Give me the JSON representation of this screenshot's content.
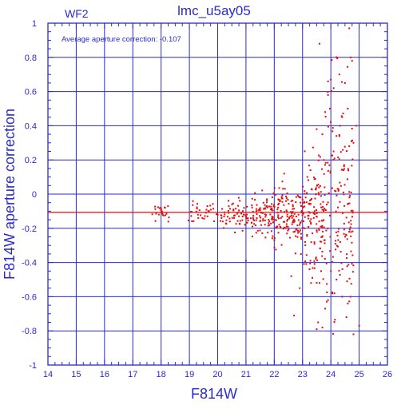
{
  "chart_data": {
    "type": "scatter",
    "title": "lmc_u5ay05",
    "subtitle": "WF2",
    "annotation": "Average aperture correction: -0.107",
    "xlabel": "F814W",
    "ylabel": "F814W aperture correction",
    "xlim": [
      14,
      26
    ],
    "ylim": [
      -1,
      1
    ],
    "x_ticks": [
      "14",
      "15",
      "16",
      "17",
      "18",
      "19",
      "20",
      "21",
      "22",
      "23",
      "24",
      "25",
      "26"
    ],
    "y_ticks": [
      "-1",
      "-0.8",
      "-0.6",
      "-0.4",
      "-0.2",
      "0",
      "0.2",
      "0.4",
      "0.6",
      "0.8",
      "1"
    ],
    "x_tick_values": [
      14,
      15,
      16,
      17,
      18,
      19,
      20,
      21,
      22,
      23,
      24,
      25,
      26
    ],
    "y_tick_values": [
      -1,
      -0.8,
      -0.6,
      -0.4,
      -0.2,
      0,
      0.2,
      0.4,
      0.6,
      0.8,
      1
    ],
    "grid": true,
    "reference_line_y": -0.107,
    "colors": {
      "axes": "#2a2ad0",
      "points": "#e01010",
      "reference_line": "#e01010",
      "background": "#ffffff"
    },
    "point_groups": [
      {
        "x_range": [
          17.6,
          18.4
        ],
        "y_center": -0.11,
        "y_spread": 0.03,
        "count": 22
      },
      {
        "x_range": [
          18.9,
          19.6
        ],
        "y_center": -0.11,
        "y_spread": 0.03,
        "count": 20
      },
      {
        "x_range": [
          19.6,
          20.4
        ],
        "y_center": -0.12,
        "y_spread": 0.035,
        "count": 30
      },
      {
        "x_range": [
          20.4,
          21.2
        ],
        "y_center": -0.12,
        "y_spread": 0.045,
        "count": 45
      },
      {
        "x_range": [
          21.2,
          22.0
        ],
        "y_center": -0.12,
        "y_spread": 0.06,
        "count": 90
      },
      {
        "x_range": [
          22.0,
          23.0
        ],
        "y_center": -0.12,
        "y_spread": 0.09,
        "count": 130
      },
      {
        "x_range": [
          23.0,
          23.8
        ],
        "y_center": -0.13,
        "y_spread": 0.18,
        "count": 140
      },
      {
        "x_range": [
          23.8,
          24.8
        ],
        "y_center": -0.08,
        "y_spread": 0.35,
        "count": 150
      }
    ],
    "outliers": [
      {
        "x": 24.65,
        "y": 0.97
      },
      {
        "x": 24.7,
        "y": 0.8
      },
      {
        "x": 24.75,
        "y": 0.78
      },
      {
        "x": 23.6,
        "y": 0.88
      },
      {
        "x": 24.3,
        "y": 0.7
      },
      {
        "x": 24.5,
        "y": 0.65
      },
      {
        "x": 24.1,
        "y": 0.62
      },
      {
        "x": 23.9,
        "y": 0.58
      },
      {
        "x": 24.6,
        "y": 0.5
      },
      {
        "x": 23.8,
        "y": 0.48
      },
      {
        "x": 24.4,
        "y": 0.45
      },
      {
        "x": 24.9,
        "y": 0.4
      },
      {
        "x": 23.5,
        "y": 0.38
      },
      {
        "x": 23.7,
        "y": 0.35
      },
      {
        "x": 24.2,
        "y": 0.34
      },
      {
        "x": 24.8,
        "y": 0.3
      },
      {
        "x": 21.0,
        "y": -0.39
      },
      {
        "x": 22.6,
        "y": -0.48
      },
      {
        "x": 23.3,
        "y": -0.52
      },
      {
        "x": 22.9,
        "y": -0.55
      },
      {
        "x": 23.6,
        "y": -0.52
      },
      {
        "x": 24.2,
        "y": -0.5
      },
      {
        "x": 23.9,
        "y": -0.62
      },
      {
        "x": 24.6,
        "y": -0.64
      },
      {
        "x": 23.8,
        "y": -0.67
      },
      {
        "x": 24.55,
        "y": -0.72
      },
      {
        "x": 23.7,
        "y": -0.78
      },
      {
        "x": 23.55,
        "y": -0.75
      },
      {
        "x": 22.7,
        "y": -0.71
      },
      {
        "x": 24.8,
        "y": -0.82
      },
      {
        "x": 23.5,
        "y": -0.79
      },
      {
        "x": 25.0,
        "y": -0.77
      },
      {
        "x": 24.4,
        "y": -0.6
      },
      {
        "x": 24.0,
        "y": -0.45
      }
    ]
  }
}
